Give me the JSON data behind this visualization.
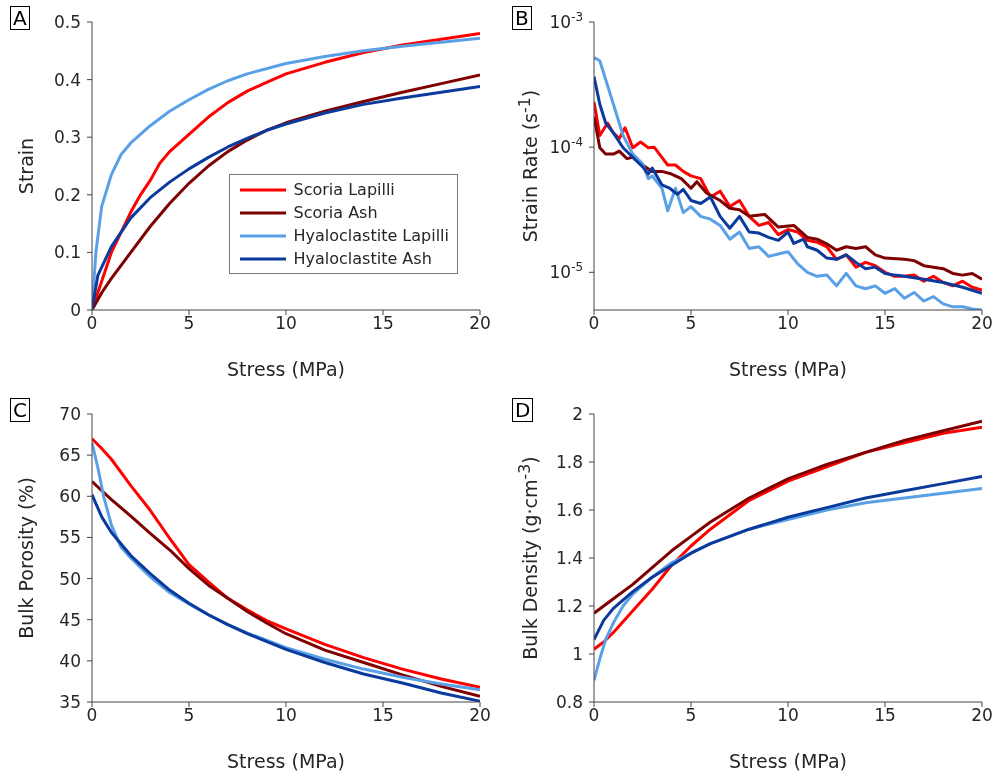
{
  "chart_data": [
    {
      "type": "line",
      "annotations": [
        "A"
      ],
      "xlabel": "Stress (MPa)",
      "ylabel": "Strain",
      "xlim": [
        0,
        20
      ],
      "xticks": [
        0,
        5,
        10,
        15,
        20
      ],
      "ylim": [
        0,
        0.5
      ],
      "yticks": [
        0,
        0.1,
        0.2,
        0.3,
        0.4,
        0.5
      ],
      "grid": false,
      "legend": "bottom right",
      "marker": "none",
      "series": [
        {
          "name": "Scoria Lapilli",
          "color": "#ff0000",
          "x": [
            0,
            0.5,
            1,
            2,
            2.5,
            3,
            3.5,
            4,
            5,
            6,
            7,
            8,
            9,
            10,
            12,
            14,
            16,
            18,
            20
          ],
          "values": [
            0,
            0.05,
            0.1,
            0.17,
            0.2,
            0.225,
            0.255,
            0.275,
            0.305,
            0.335,
            0.36,
            0.38,
            0.395,
            0.41,
            0.43,
            0.447,
            0.46,
            0.47,
            0.48
          ]
        },
        {
          "name": "Scoria Ash",
          "color": "#7f0000",
          "x": [
            0,
            0.5,
            1,
            2,
            3,
            4,
            5,
            6,
            7,
            8,
            9,
            10,
            12,
            14,
            16,
            18,
            20
          ],
          "values": [
            0,
            0.03,
            0.055,
            0.1,
            0.145,
            0.185,
            0.22,
            0.25,
            0.275,
            0.295,
            0.312,
            0.325,
            0.345,
            0.362,
            0.378,
            0.393,
            0.408
          ]
        },
        {
          "name": "Hyaloclastite Lapilli",
          "color": "#5aa0e6",
          "x": [
            0,
            0.2,
            0.5,
            1,
            1.5,
            2,
            3,
            4,
            5,
            6,
            7,
            8,
            10,
            12,
            14,
            16,
            18,
            20
          ],
          "values": [
            0,
            0.1,
            0.18,
            0.235,
            0.27,
            0.29,
            0.32,
            0.345,
            0.365,
            0.383,
            0.398,
            0.41,
            0.428,
            0.44,
            0.45,
            0.458,
            0.465,
            0.472
          ]
        },
        {
          "name": "Hyaloclastite Ash",
          "color": "#0a3a9c",
          "x": [
            0,
            0.3,
            1,
            2,
            3,
            4,
            5,
            6,
            7,
            8,
            9,
            10,
            12,
            14,
            16,
            18,
            20
          ],
          "values": [
            0,
            0.06,
            0.11,
            0.16,
            0.195,
            0.222,
            0.245,
            0.265,
            0.283,
            0.298,
            0.312,
            0.323,
            0.342,
            0.357,
            0.368,
            0.378,
            0.388
          ]
        }
      ]
    },
    {
      "type": "line",
      "annotations": [
        "B"
      ],
      "xlabel": "Stress (MPa)",
      "ylabel": "Strain Rate (s$^{-1}$)",
      "xlim": [
        0,
        20
      ],
      "xticks": [
        0,
        5,
        10,
        15,
        20
      ],
      "log": "y",
      "ylim": [
        5e-06,
        0.001
      ],
      "yticks": [
        {
          "value": 1e-05,
          "label": "10$^{-5}$"
        },
        {
          "value": 0.0001,
          "label": "10$^{-4}$"
        },
        {
          "value": 0.001,
          "label": "10$^{-3}$"
        }
      ],
      "grid": false,
      "marker": "none",
      "series": [
        {
          "color": "#ff0000",
          "x": [
            0,
            0.3,
            0.7,
            1,
            1.3,
            1.6,
            2,
            2.4,
            2.8,
            3.1,
            3.5,
            3.8,
            4.2,
            4.6,
            5,
            5.5,
            6,
            6.5,
            7,
            7.5,
            8,
            8.5,
            9,
            9.5,
            10,
            10.5,
            11,
            11.5,
            12,
            12.5,
            13,
            13.5,
            14,
            14.5,
            15,
            15.5,
            16,
            16.5,
            17,
            17.5,
            18,
            18.5,
            19,
            19.5,
            20
          ],
          "values": [
            0.00023,
            0.000124,
            0.000156,
            0.00013,
            0.000117,
            0.000143,
            9.9e-05,
            0.00011,
            9.9e-05,
            0.0001,
            8.3e-05,
            7.2e-05,
            7.2e-05,
            6.4e-05,
            5.9e-05,
            5.6e-05,
            4e-05,
            4.45e-05,
            3.35e-05,
            3.75e-05,
            2.8e-05,
            2.37e-05,
            2.5e-05,
            2e-05,
            2.2e-05,
            2.1e-05,
            1.8e-05,
            1.74e-05,
            1.6e-05,
            1.27e-05,
            1.38e-05,
            1.1e-05,
            1.2e-05,
            1.13e-05,
            1e-05,
            9.3e-06,
            9.3e-06,
            9.5e-06,
            8.5e-06,
            9.3e-06,
            8.3e-06,
            7.8e-06,
            8.5e-06,
            7.6e-06,
            7.2e-06
          ]
        },
        {
          "color": "#7f0000",
          "x": [
            0,
            0.3,
            0.6,
            1,
            1.3,
            1.7,
            2,
            2.5,
            3,
            3.5,
            4,
            4.5,
            5,
            5.3,
            5.8,
            6.5,
            7,
            7.5,
            8,
            8.8,
            9.5,
            10.3,
            11,
            11.5,
            12,
            12.5,
            13,
            13.5,
            14,
            14.5,
            15,
            16,
            16.5,
            17,
            18,
            18.5,
            19,
            19.5,
            20
          ],
          "values": [
            0.000175,
            9.9e-05,
            8.8e-05,
            8.8e-05,
            9.3e-05,
            8.1e-05,
            8.3e-05,
            7.2e-05,
            6.4e-05,
            6.4e-05,
            6.1e-05,
            5.6e-05,
            4.7e-05,
            5.3e-05,
            4.3e-05,
            3.75e-05,
            3.25e-05,
            3.16e-05,
            2.8e-05,
            2.9e-05,
            2.3e-05,
            2.37e-05,
            1.9e-05,
            1.84e-05,
            1.69e-05,
            1.5e-05,
            1.6e-05,
            1.55e-05,
            1.6e-05,
            1.38e-05,
            1.3e-05,
            1.27e-05,
            1.24e-05,
            1.13e-05,
            1.07e-05,
            9.8e-06,
            9.5e-06,
            9.8e-06,
            8.8e-06
          ]
        },
        {
          "color": "#5aa0e6",
          "x": [
            0,
            0.3,
            1,
            1.5,
            2,
            2.5,
            2.8,
            3,
            3.5,
            3.8,
            4.2,
            4.6,
            5,
            5.5,
            6,
            6.5,
            7,
            7.5,
            8,
            8.5,
            9,
            9.5,
            10,
            10.5,
            11,
            11.5,
            12,
            12.5,
            13,
            13.5,
            14,
            14.5,
            15,
            15.5,
            16,
            16.5,
            17,
            17.5,
            18,
            18.5,
            19,
            19.5,
            20
          ],
          "values": [
            0.00052,
            0.00049,
            0.00022,
            0.000124,
            8.8e-05,
            7.4e-05,
            5.6e-05,
            5.9e-05,
            4.7e-05,
            3.1e-05,
            4.7e-05,
            3e-05,
            3.35e-05,
            2.8e-05,
            2.66e-05,
            2.37e-05,
            1.84e-05,
            2.1e-05,
            1.55e-05,
            1.6e-05,
            1.34e-05,
            1.4e-05,
            1.46e-05,
            1.17e-05,
            1e-05,
            9.3e-06,
            9.5e-06,
            7.8e-06,
            9.8e-06,
            7.8e-06,
            7.4e-06,
            7.8e-06,
            6.8e-06,
            7.4e-06,
            6.2e-06,
            6.9e-06,
            5.9e-06,
            6.4e-06,
            5.6e-06,
            5.3e-06,
            5.3e-06,
            5.1e-06,
            5e-06
          ]
        },
        {
          "color": "#0a3a9c",
          "x": [
            0,
            0.3,
            0.6,
            1,
            1.5,
            2,
            2.5,
            2.8,
            3,
            3.5,
            3.9,
            4.3,
            4.6,
            5,
            5.5,
            6,
            6.5,
            7,
            7.5,
            8,
            8.5,
            9,
            9.5,
            10,
            10.3,
            10.8,
            11,
            11.5,
            12,
            12.5,
            13,
            13.5,
            14,
            14.5,
            15,
            15.5,
            16,
            17,
            18,
            19,
            20
          ],
          "values": [
            0.000366,
            0.00022,
            0.000156,
            0.00013,
            9.9e-05,
            8.3e-05,
            7e-05,
            6.1e-05,
            6.8e-05,
            5e-05,
            4.7e-05,
            4.2e-05,
            4.6e-05,
            3.75e-05,
            3.55e-05,
            4e-05,
            2.8e-05,
            2.25e-05,
            2.8e-05,
            2.1e-05,
            2.06e-05,
            1.9e-05,
            1.8e-05,
            2.1e-05,
            1.7e-05,
            1.84e-05,
            1.6e-05,
            1.5e-05,
            1.3e-05,
            1.27e-05,
            1.38e-05,
            1.2e-05,
            1.07e-05,
            1.1e-05,
            9.8e-06,
            9.5e-06,
            9.3e-06,
            8.8e-06,
            8.3e-06,
            7.6e-06,
            6.8e-06
          ]
        }
      ]
    },
    {
      "type": "line",
      "annotations": [
        "C"
      ],
      "xlabel": "Stress (MPa)",
      "ylabel": "Bulk Porosity (%)",
      "xlim": [
        0,
        20
      ],
      "xticks": [
        0,
        5,
        10,
        15,
        20
      ],
      "ylim": [
        35,
        70
      ],
      "yticks": [
        35,
        40,
        45,
        50,
        55,
        60,
        65,
        70
      ],
      "grid": false,
      "marker": "none",
      "series": [
        {
          "color": "#ff0000",
          "x": [
            0,
            0.5,
            1,
            2,
            3,
            4,
            5,
            6,
            7,
            8,
            9,
            10,
            12,
            14,
            16,
            18,
            20
          ],
          "values": [
            67,
            65.8,
            64.5,
            61.3,
            58.3,
            54.9,
            51.7,
            49.6,
            47.6,
            46.2,
            44.9,
            43.9,
            42,
            40.4,
            39,
            37.8,
            36.8
          ]
        },
        {
          "color": "#7f0000",
          "x": [
            0,
            1,
            2,
            3,
            4,
            5,
            6,
            7,
            8,
            9,
            10,
            12,
            14,
            16,
            18,
            20
          ],
          "values": [
            61.8,
            59.6,
            57.6,
            55.5,
            53.5,
            51.2,
            49.2,
            47.6,
            46,
            44.6,
            43.3,
            41.3,
            39.8,
            38.3,
            36.9,
            35.7
          ]
        },
        {
          "color": "#5aa0e6",
          "x": [
            0,
            0.3,
            0.6,
            1,
            1.5,
            2,
            3,
            4,
            5,
            6,
            7,
            8,
            10,
            12,
            14,
            16,
            18,
            20
          ],
          "values": [
            66.5,
            63.5,
            60,
            56.5,
            53.8,
            52.5,
            50.2,
            48.3,
            46.9,
            45.6,
            44.4,
            43.4,
            41.6,
            40.2,
            39,
            38,
            37.2,
            36.5
          ]
        },
        {
          "color": "#0a3a9c",
          "x": [
            0,
            0.5,
            1,
            2,
            3,
            4,
            5,
            6,
            7,
            8,
            10,
            12,
            14,
            16,
            18,
            20
          ],
          "values": [
            60.2,
            57.5,
            55.6,
            52.8,
            50.6,
            48.6,
            47,
            45.6,
            44.4,
            43.3,
            41.4,
            39.8,
            38.4,
            37.3,
            36.1,
            35.1
          ]
        }
      ]
    },
    {
      "type": "line",
      "annotations": [
        "D"
      ],
      "xlabel": "Stress (MPa)",
      "ylabel": "Bulk Density (g·cm$^{-3}$)",
      "xlim": [
        0,
        20
      ],
      "xticks": [
        0,
        5,
        10,
        15,
        20
      ],
      "ylim": [
        0.8,
        2
      ],
      "yticks": [
        0.8,
        1,
        1.2,
        1.4,
        1.6,
        1.8,
        2
      ],
      "grid": false,
      "marker": "none",
      "series": [
        {
          "color": "#ff0000",
          "x": [
            0,
            0.5,
            1,
            2,
            3,
            4,
            5,
            6,
            7,
            8,
            9,
            10,
            12,
            14,
            16,
            18,
            20
          ],
          "values": [
            1.02,
            1.05,
            1.09,
            1.18,
            1.27,
            1.37,
            1.45,
            1.52,
            1.58,
            1.64,
            1.68,
            1.72,
            1.78,
            1.84,
            1.88,
            1.92,
            1.945
          ]
        },
        {
          "color": "#7f0000",
          "x": [
            0,
            1,
            2,
            3,
            4,
            5,
            6,
            7,
            8,
            9,
            10,
            12,
            14,
            16,
            18,
            20
          ],
          "values": [
            1.17,
            1.23,
            1.29,
            1.36,
            1.43,
            1.49,
            1.55,
            1.6,
            1.65,
            1.69,
            1.73,
            1.79,
            1.84,
            1.89,
            1.93,
            1.97
          ]
        },
        {
          "color": "#5aa0e6",
          "x": [
            0,
            0.3,
            0.6,
            1,
            1.5,
            2,
            3,
            4,
            5,
            6,
            7,
            8,
            10,
            12,
            14,
            16,
            18,
            20
          ],
          "values": [
            0.89,
            0.98,
            1.06,
            1.13,
            1.2,
            1.25,
            1.32,
            1.38,
            1.42,
            1.46,
            1.49,
            1.52,
            1.56,
            1.6,
            1.63,
            1.65,
            1.67,
            1.69
          ]
        },
        {
          "color": "#0a3a9c",
          "x": [
            0,
            0.5,
            1,
            2,
            3,
            4,
            5,
            6,
            7,
            8,
            10,
            12,
            14,
            16,
            18,
            20
          ],
          "values": [
            1.06,
            1.14,
            1.19,
            1.26,
            1.32,
            1.37,
            1.42,
            1.46,
            1.49,
            1.52,
            1.57,
            1.61,
            1.65,
            1.68,
            1.71,
            1.74
          ]
        }
      ]
    }
  ]
}
